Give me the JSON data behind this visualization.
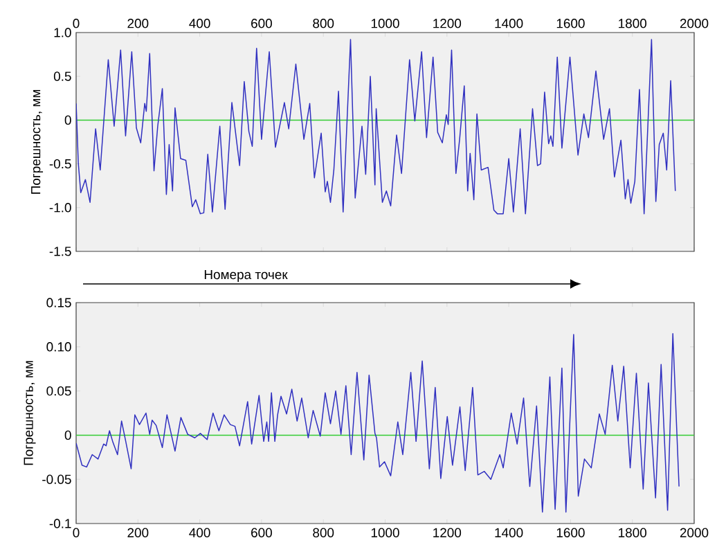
{
  "chart_data": [
    {
      "type": "line",
      "xlabel": "Номера точек",
      "ylabel": "Погрешность, мм",
      "xlim": [
        0,
        2000
      ],
      "xticks": [
        0,
        200,
        400,
        600,
        800,
        1000,
        1200,
        1400,
        1600,
        1800,
        2000
      ],
      "ylim": [
        -1.5,
        1.0
      ],
      "yticks": [
        -1.5,
        {
          "value": -1.0,
          "label": "-1.0"
        },
        -0.5,
        0,
        0.5,
        {
          "value": 1.0,
          "label": "1.0"
        }
      ],
      "ref_lines": [
        {
          "axis": "y",
          "value": 0,
          "color": "#33cc33"
        }
      ],
      "series": [
        {
          "color": "#3030c0",
          "x": [
            0,
            7,
            15,
            30,
            45,
            63,
            78,
            104,
            123,
            144,
            160,
            180,
            195,
            209,
            222,
            227,
            238,
            252,
            264,
            279,
            292,
            301,
            312,
            320,
            338,
            355,
            376,
            387,
            402,
            413,
            426,
            441,
            465,
            482,
            504,
            529,
            544,
            559,
            570,
            584,
            600,
            625,
            645,
            674,
            688,
            711,
            737,
            756,
            771,
            793,
            806,
            813,
            823,
            834,
            849,
            864,
            888,
            903,
            925,
            937,
            952,
            967,
            971,
            991,
            1004,
            1018,
            1037,
            1053,
            1079,
            1096,
            1118,
            1134,
            1155,
            1170,
            1185,
            1198,
            1204,
            1215,
            1229,
            1241,
            1256,
            1267,
            1275,
            1287,
            1297,
            1311,
            1333,
            1352,
            1363,
            1382,
            1400,
            1415,
            1437,
            1454,
            1477,
            1493,
            1503,
            1516,
            1529,
            1536,
            1543,
            1557,
            1572,
            1598,
            1624,
            1643,
            1658,
            1682,
            1707,
            1726,
            1742,
            1763,
            1777,
            1786,
            1795,
            1808,
            1823,
            1838,
            1862,
            1876,
            1887,
            1900,
            1911,
            1924,
            1939
          ],
          "values": [
            0.19,
            -0.49,
            -0.83,
            -0.68,
            -0.94,
            -0.1,
            -0.57,
            0.69,
            -0.07,
            0.8,
            -0.18,
            0.78,
            -0.09,
            -0.26,
            0.19,
            0.1,
            0.76,
            -0.58,
            -0.07,
            0.36,
            -0.85,
            -0.28,
            -0.81,
            0.14,
            -0.44,
            -0.46,
            -0.99,
            -0.91,
            -1.07,
            -1.06,
            -0.39,
            -1.05,
            -0.07,
            -1.02,
            0.2,
            -0.52,
            0.44,
            -0.13,
            -0.3,
            0.82,
            -0.22,
            0.78,
            -0.31,
            0.2,
            -0.1,
            0.64,
            -0.22,
            0.19,
            -0.66,
            -0.15,
            -0.82,
            -0.7,
            -0.94,
            -0.57,
            0.33,
            -1.05,
            0.92,
            -0.89,
            -0.07,
            -0.62,
            0.5,
            -0.74,
            0.13,
            -0.94,
            -0.81,
            -0.98,
            -0.17,
            -0.61,
            0.69,
            -0.01,
            0.78,
            -0.2,
            0.72,
            -0.14,
            -0.26,
            0.06,
            -0.05,
            0.8,
            -0.61,
            -0.22,
            0.39,
            -0.81,
            -0.38,
            -0.91,
            0.07,
            -0.57,
            -0.54,
            -1.03,
            -1.07,
            -1.07,
            -0.44,
            -1.05,
            -0.1,
            -1.07,
            0.13,
            -0.52,
            -0.5,
            0.32,
            -0.27,
            -0.18,
            -0.3,
            0.72,
            -0.32,
            0.72,
            -0.4,
            0.07,
            -0.2,
            0.56,
            -0.22,
            0.13,
            -0.65,
            -0.23,
            -0.9,
            -0.68,
            -0.95,
            -0.7,
            0.35,
            -1.07,
            0.92,
            -0.93,
            -0.28,
            -0.15,
            -0.57,
            0.45,
            -0.81
          ]
        }
      ]
    },
    {
      "type": "line",
      "ylabel": "Погрешность, мм",
      "xlim": [
        0,
        2000
      ],
      "xticks": [
        0,
        200,
        400,
        600,
        800,
        1000,
        1200,
        1400,
        1600,
        1800,
        2000
      ],
      "ylim": [
        -0.1,
        0.15
      ],
      "yticks": [
        -0.1,
        -0.05,
        0,
        0.05,
        {
          "value": 0.1,
          "label": "0.10"
        },
        0.15
      ],
      "ref_lines": [
        {
          "axis": "y",
          "value": 0,
          "color": "#33cc33"
        }
      ],
      "series": [
        {
          "color": "#3030c0",
          "x": [
            0,
            19,
            34,
            52,
            71,
            89,
            97,
            108,
            119,
            134,
            147,
            160,
            178,
            190,
            205,
            226,
            238,
            246,
            259,
            279,
            294,
            320,
            339,
            361,
            384,
            402,
            424,
            443,
            462,
            479,
            499,
            514,
            529,
            555,
            568,
            592,
            607,
            617,
            623,
            632,
            643,
            652,
            663,
            681,
            698,
            715,
            730,
            751,
            767,
            790,
            806,
            823,
            840,
            857,
            873,
            890,
            909,
            931,
            948,
            967,
            972,
            982,
            998,
            1018,
            1041,
            1057,
            1083,
            1100,
            1120,
            1143,
            1162,
            1180,
            1201,
            1218,
            1242,
            1259,
            1283,
            1300,
            1321,
            1342,
            1371,
            1382,
            1408,
            1427,
            1448,
            1468,
            1490,
            1509,
            1533,
            1550,
            1572,
            1585,
            1610,
            1625,
            1645,
            1667,
            1693,
            1712,
            1735,
            1753,
            1772,
            1793,
            1813,
            1835,
            1852,
            1875,
            1893,
            1914,
            1931,
            1951
          ],
          "values": [
            -0.009,
            -0.034,
            -0.036,
            -0.022,
            -0.027,
            -0.01,
            -0.012,
            0.005,
            -0.008,
            -0.022,
            0.016,
            -0.006,
            -0.038,
            0.023,
            0.012,
            0.025,
            0.001,
            0.017,
            0.011,
            -0.014,
            0.023,
            -0.018,
            0.02,
            0.001,
            -0.003,
            0.002,
            -0.005,
            0.025,
            0.005,
            0.023,
            0.012,
            0.01,
            -0.012,
            0.038,
            -0.01,
            0.045,
            -0.007,
            0.015,
            -0.007,
            0.048,
            -0.007,
            0.023,
            0.044,
            0.024,
            0.052,
            0.016,
            0.042,
            -0.003,
            0.028,
            -0.001,
            0.048,
            0.013,
            0.05,
            0.001,
            0.056,
            -0.022,
            0.071,
            -0.028,
            0.068,
            0.002,
            -0.003,
            -0.036,
            -0.03,
            -0.046,
            0.015,
            -0.022,
            0.071,
            -0.007,
            0.084,
            -0.038,
            0.054,
            -0.049,
            0.021,
            -0.034,
            0.032,
            -0.04,
            0.054,
            -0.045,
            -0.041,
            -0.05,
            -0.022,
            -0.037,
            0.025,
            -0.01,
            0.042,
            -0.058,
            0.033,
            -0.087,
            0.066,
            -0.084,
            0.076,
            -0.087,
            0.114,
            -0.069,
            -0.027,
            -0.037,
            0.024,
            0.001,
            0.079,
            0.016,
            0.078,
            -0.037,
            0.07,
            -0.061,
            0.059,
            -0.071,
            0.08,
            -0.085,
            0.115,
            -0.058
          ]
        }
      ]
    }
  ]
}
